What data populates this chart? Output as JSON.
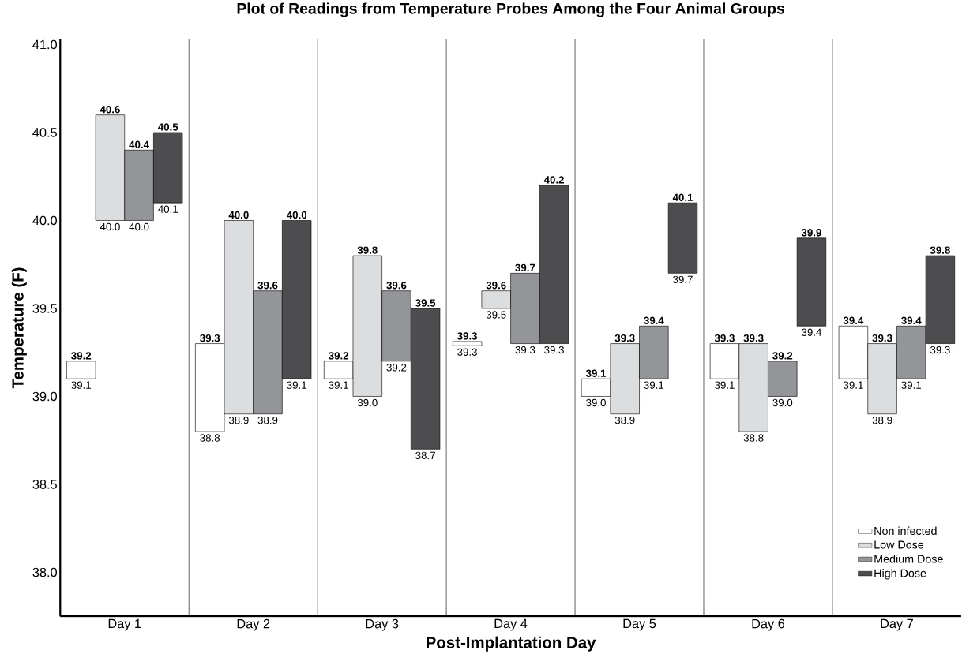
{
  "chart_data": {
    "type": "bar",
    "title": "Plot of Readings from Temperature Probes Among the Four Animal Groups",
    "xlabel": "Post-Implantation Day",
    "ylabel": "Temperature (F)",
    "categories": [
      "Day 1",
      "Day 2",
      "Day 3",
      "Day 4",
      "Day 5",
      "Day 6",
      "Day 7"
    ],
    "series": [
      {
        "name": "Non infected",
        "color": "#ffffff",
        "base": [
          39.1,
          38.8,
          39.1,
          39.3,
          39.0,
          39.1,
          39.1
        ],
        "values": [
          0.1,
          0.5,
          0.1,
          0,
          0.1,
          0.2,
          0.3
        ],
        "value_labels": [
          "39.2",
          "39.3",
          "39.2",
          "39.3",
          "39.1",
          "39.3",
          "39.4"
        ]
      },
      {
        "name": "Low Dose",
        "color": "#dcdddf",
        "base": [
          40.0,
          38.9,
          39.0,
          39.5,
          38.9,
          38.8,
          38.9
        ],
        "values": [
          0.6,
          1.1,
          0.8,
          0.1,
          0.4,
          0.5,
          0.4
        ],
        "value_labels": [
          "40.6",
          "40.0",
          "39.8",
          "39.6",
          "39.3",
          "39.3",
          "39.3"
        ]
      },
      {
        "name": "Medium Dose",
        "color": "#939598",
        "base": [
          40.0,
          38.9,
          39.2,
          39.3,
          39.1,
          39.0,
          39.1
        ],
        "values": [
          0.4,
          0.7,
          0.4,
          0.4,
          0.3,
          0.2,
          0.3
        ],
        "value_labels": [
          "40.4",
          "39.6",
          "39.6",
          "39.7",
          "39.4",
          "39.2",
          "39.4"
        ]
      },
      {
        "name": "High Dose",
        "color": "#4d4d4f",
        "base": [
          40.1,
          39.1,
          38.7,
          39.3,
          39.7,
          39.4,
          39.3
        ],
        "values": [
          0.4,
          0.9,
          0.8,
          0.9,
          0.4,
          0.5,
          0.5
        ],
        "value_labels": [
          "40.5",
          "40.0",
          "39.5",
          "40.2",
          "40.1",
          "39.9",
          "39.8"
        ]
      }
    ],
    "annotations": [
      "39.1",
      "38.8",
      "39.1",
      "39.3",
      "39.0",
      "39.1",
      "39.1",
      "40.0",
      "38.9",
      "39.0",
      "39.5",
      "38.9",
      "38.8",
      "38.9",
      "40.0",
      "38.9",
      "39.2",
      "39.3",
      "39.1",
      "39.0",
      "39.1",
      "40.1",
      "39.1",
      "38.7",
      "39.3",
      "39.7",
      "39.4",
      "39.3"
    ],
    "ylim": [
      37.75,
      41.03
    ],
    "yticks": [
      {
        "value": 38,
        "label": "38.0"
      },
      {
        "value": 38.5,
        "label": "38.5"
      },
      {
        "value": 39,
        "label": "39.0"
      },
      {
        "value": 39.5,
        "label": "39.5"
      },
      {
        "value": 40,
        "label": "40.0"
      },
      {
        "value": 40.5,
        "label": "40.5"
      },
      {
        "value": 41,
        "label": "41.0"
      }
    ],
    "grid": "x",
    "legend": "bottom right"
  }
}
